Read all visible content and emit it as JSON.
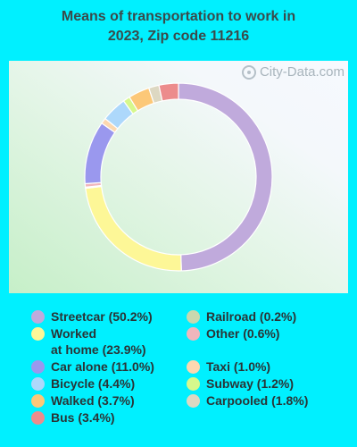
{
  "title_line1": "Means of transportation to work in",
  "title_line2": "2023, Zip code 11216",
  "watermark": "City-Data.com",
  "chart_data": {
    "type": "pie",
    "variant": "donut",
    "title": "Means of transportation to work in 2023, Zip code 11216",
    "slices": [
      {
        "label": "Streetcar",
        "value": 50.2,
        "color": "#c0aadc"
      },
      {
        "label": "Worked at home",
        "value": 23.9,
        "color": "#fdf797"
      },
      {
        "label": "Railroad",
        "value": 0.2,
        "color": "#c8d8ae"
      },
      {
        "label": "Other",
        "value": 0.6,
        "color": "#f0b6bc"
      },
      {
        "label": "Car alone",
        "value": 11.0,
        "color": "#9a98ee"
      },
      {
        "label": "Taxi",
        "value": 1.0,
        "color": "#fcd8b0"
      },
      {
        "label": "Bicycle",
        "value": 4.4,
        "color": "#add8fb"
      },
      {
        "label": "Subway",
        "value": 1.2,
        "color": "#d6f88c"
      },
      {
        "label": "Walked",
        "value": 3.7,
        "color": "#fcc878"
      },
      {
        "label": "Carpooled",
        "value": 1.8,
        "color": "#ddd8c2"
      },
      {
        "label": "Bus",
        "value": 3.4,
        "color": "#ec8c8c"
      }
    ]
  },
  "legend": {
    "left": [
      {
        "text": "Streetcar (50.2%)",
        "color": "#c0aadc"
      },
      {
        "text": "Worked\nat home (23.9%)",
        "color": "#fdf797"
      },
      {
        "text": "Car alone (11.0%)",
        "color": "#9a98ee"
      },
      {
        "text": "Bicycle (4.4%)",
        "color": "#add8fb"
      },
      {
        "text": "Walked (3.7%)",
        "color": "#fcc878"
      },
      {
        "text": "Bus (3.4%)",
        "color": "#ec8c8c"
      }
    ],
    "right": [
      {
        "text": "Railroad (0.2%)",
        "color": "#c8d8ae"
      },
      {
        "text": "Other (0.6%)",
        "color": "#f0b6bc"
      },
      {
        "text": "Taxi (1.0%)",
        "color": "#fcd8b0"
      },
      {
        "text": "Subway (1.2%)",
        "color": "#d6f88c"
      },
      {
        "text": "Carpooled (1.8%)",
        "color": "#ddd8c2"
      }
    ]
  }
}
